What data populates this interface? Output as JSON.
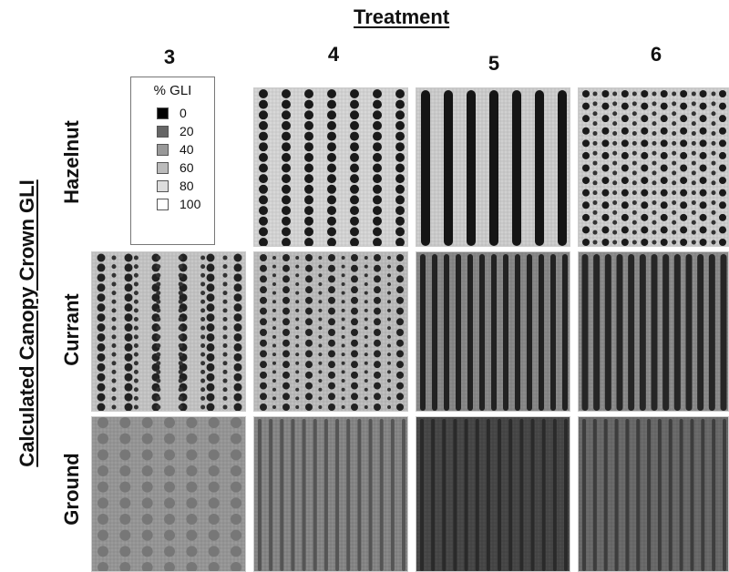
{
  "title": "Treatment",
  "y_axis_label": "Calculated Canopy Crown GLI",
  "columns": [
    "3",
    "4",
    "5",
    "6"
  ],
  "rows": [
    "Hazelnut",
    "Currant",
    "Ground"
  ],
  "legend": {
    "title": "% GLI",
    "items": [
      {
        "label": "0",
        "color": "#000000"
      },
      {
        "label": "20",
        "color": "#666666"
      },
      {
        "label": "40",
        "color": "#999999"
      },
      {
        "label": "60",
        "color": "#bbbbbb"
      },
      {
        "label": "80",
        "color": "#dddddd"
      },
      {
        "label": "100",
        "color": "#ffffff"
      }
    ]
  }
}
